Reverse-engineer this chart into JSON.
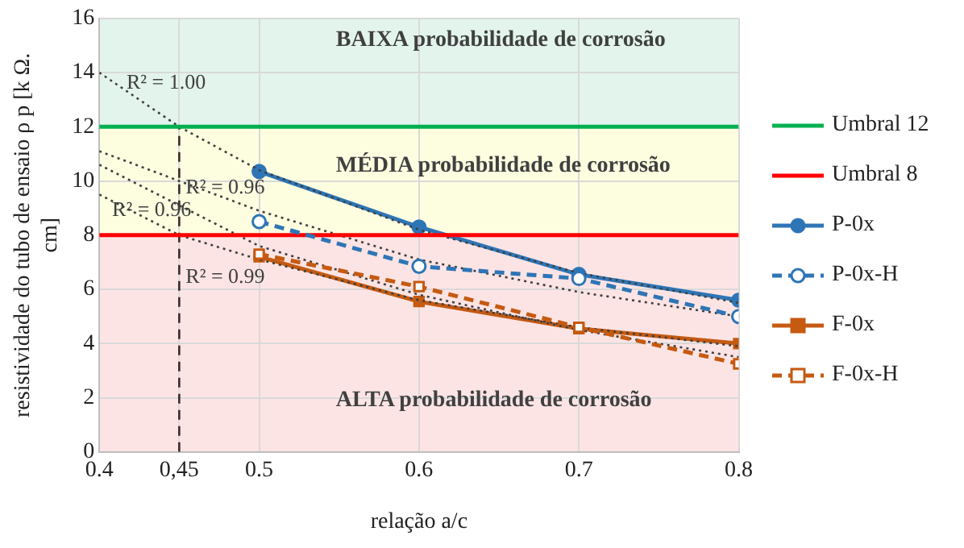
{
  "chart_data": {
    "type": "line",
    "xlabel": "relação a/c",
    "ylabel": "resistividade do tubo de ensaio ρ p [k Ω. cm]",
    "xlim": [
      0.4,
      0.8
    ],
    "xticks": [
      0.4,
      {
        "value": 0.45,
        "label": "0,45"
      },
      0.5,
      0.6,
      0.7,
      0.8
    ],
    "ylim": [
      0,
      16
    ],
    "yticks": [
      0,
      2,
      4,
      6,
      8,
      10,
      12,
      14,
      16
    ],
    "grid": true,
    "legend": "right",
    "bands": [
      {
        "axis": "y",
        "from": 12,
        "to": 16,
        "label": "BAIXA probabilidade de corrosão",
        "color": "#e3f4ec"
      },
      {
        "axis": "y",
        "from": 8,
        "to": 12,
        "label": "MÉDIA probabilidade de corrosão",
        "color": "#fdfde0"
      },
      {
        "axis": "y",
        "from": 0,
        "to": 8,
        "label": "ALTA probabilidade de corrosão",
        "color": "#fde4e4"
      }
    ],
    "annotations": [
      {
        "text": "R² = 1.00",
        "x": 0.417,
        "y": 13.6
      },
      {
        "text": "R² = 0.96",
        "x": 0.454,
        "y": 9.75
      },
      {
        "text": "R² = 0.96",
        "x": 0.408,
        "y": 8.9
      },
      {
        "text": "R² = 0.99",
        "x": 0.454,
        "y": 6.45
      }
    ],
    "series": [
      {
        "name": "Umbral 12",
        "color": "#00b050",
        "x": [
          0.4,
          0.8
        ],
        "values": [
          12,
          12
        ],
        "marker": "none",
        "line_style": "solid"
      },
      {
        "name": "Umbral 8",
        "color": "#ff0000",
        "x": [
          0.4,
          0.8
        ],
        "values": [
          8,
          8
        ],
        "marker": "none",
        "line_style": "solid"
      },
      {
        "color": "#404040",
        "x": [
          0.4,
          0.45,
          0.5,
          0.6,
          0.7,
          0.8
        ],
        "values": [
          14,
          12,
          10.4,
          8.2,
          6.6,
          5.5
        ],
        "marker": "none",
        "line_style": "dotted"
      },
      {
        "color": "#404040",
        "x": [
          0.4,
          0.5,
          0.6,
          0.7,
          0.8
        ],
        "values": [
          11.1,
          8.9,
          7.1,
          5.9,
          5.0
        ],
        "marker": "none",
        "line_style": "dotted"
      },
      {
        "color": "#404040",
        "x": [
          0.4,
          0.5,
          0.6,
          0.7,
          0.8
        ],
        "values": [
          10.6,
          7.6,
          5.8,
          4.5,
          3.5
        ],
        "marker": "none",
        "line_style": "dotted"
      },
      {
        "color": "#404040",
        "x": [
          0.4,
          0.45,
          0.5,
          0.6,
          0.7,
          0.8
        ],
        "values": [
          9.5,
          8.0,
          7.1,
          5.6,
          4.6,
          3.9
        ],
        "marker": "none",
        "line_style": "dotted"
      },
      {
        "color": "#3a2a2a",
        "x": [
          0.45,
          0.45
        ],
        "values": [
          0,
          12
        ],
        "marker": "none",
        "line_style": "dashed"
      },
      {
        "name": "P-0x",
        "color": "#2e75b6",
        "x": [
          0.5,
          0.6,
          0.7,
          0.8
        ],
        "values": [
          10.35,
          8.3,
          6.55,
          5.6
        ],
        "marker": "circle",
        "line_style": "solid"
      },
      {
        "name": "P-0x-H",
        "color": "#2e75b6",
        "x": [
          0.5,
          0.6,
          0.7,
          0.8
        ],
        "values": [
          8.5,
          6.85,
          6.4,
          5.0
        ],
        "marker": "circle",
        "line_style": "dashed"
      },
      {
        "name": "F-0x",
        "color": "#c55a11",
        "x": [
          0.5,
          0.6,
          0.7,
          0.8
        ],
        "values": [
          7.2,
          5.55,
          4.55,
          4.0
        ],
        "marker": "square",
        "line_style": "solid"
      },
      {
        "name": "F-0x-H",
        "color": "#c55a11",
        "x": [
          0.5,
          0.6,
          0.7,
          0.8
        ],
        "values": [
          7.3,
          6.1,
          4.6,
          3.25
        ],
        "marker": "square",
        "line_style": "dashed"
      }
    ]
  }
}
